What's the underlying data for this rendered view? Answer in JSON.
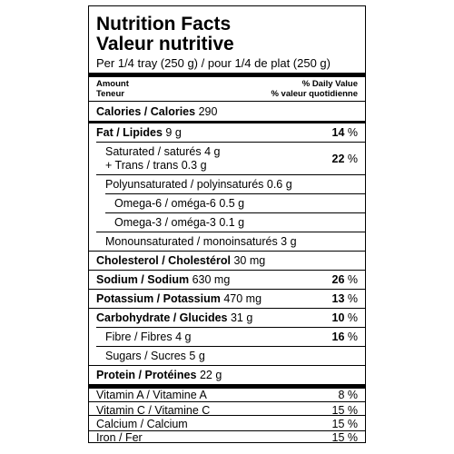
{
  "title_en": "Nutrition Facts",
  "title_fr": "Valeur nutritive",
  "serving": "Per 1/4 tray (250 g) / pour 1/4 de plat (250 g)",
  "header": {
    "amount_en": "Amount",
    "amount_fr": "Teneur",
    "dv_en": "% Daily Value",
    "dv_fr": "% valeur quotidienne"
  },
  "rows": [
    {
      "name_bold": "Calories / Calories",
      "amount": "290",
      "dv": "",
      "dv_bold": ""
    },
    {
      "name_bold": "Fat / Lipides",
      "amount": "9 g",
      "dv": " %",
      "dv_bold": "14"
    },
    {
      "name": "Saturated / saturés 4 g",
      "name2": "+ Trans / trans 0.3 g",
      "dv": " %",
      "dv_bold": "22"
    },
    {
      "name": "Polyunsaturated / polyinsaturés 0.6 g"
    },
    {
      "name": "Omega-6 / oméga-6 0.5 g"
    },
    {
      "name": "Omega-3 / oméga-3 0.1 g"
    },
    {
      "name": "Monounsaturated / monoinsaturés 3 g"
    },
    {
      "name_bold": "Cholesterol / Cholestérol",
      "amount": "30 mg"
    },
    {
      "name_bold": "Sodium / Sodium",
      "amount": "630 mg",
      "dv": " %",
      "dv_bold": "26"
    },
    {
      "name_bold": "Potassium / Potassium",
      "amount": "470 mg",
      "dv": " %",
      "dv_bold": "13"
    },
    {
      "name_bold": "Carbohydrate / Glucides",
      "amount": "31 g",
      "dv": " %",
      "dv_bold": "10"
    },
    {
      "name": "Fibre / Fibres 4 g",
      "dv": " %",
      "dv_bold": "16"
    },
    {
      "name": "Sugars / Sucres 5 g"
    },
    {
      "name_bold": "Protein / Protéines",
      "amount": "22 g"
    }
  ],
  "vitamins": [
    {
      "name": "Vitamin A / Vitamine A",
      "dv": "8 %"
    },
    {
      "name": "Vitamin C / Vitamine C",
      "dv": "15 %"
    },
    {
      "name": "Calcium / Calcium",
      "dv": "15 %"
    },
    {
      "name": "Iron / Fer",
      "dv": "15 %"
    }
  ]
}
